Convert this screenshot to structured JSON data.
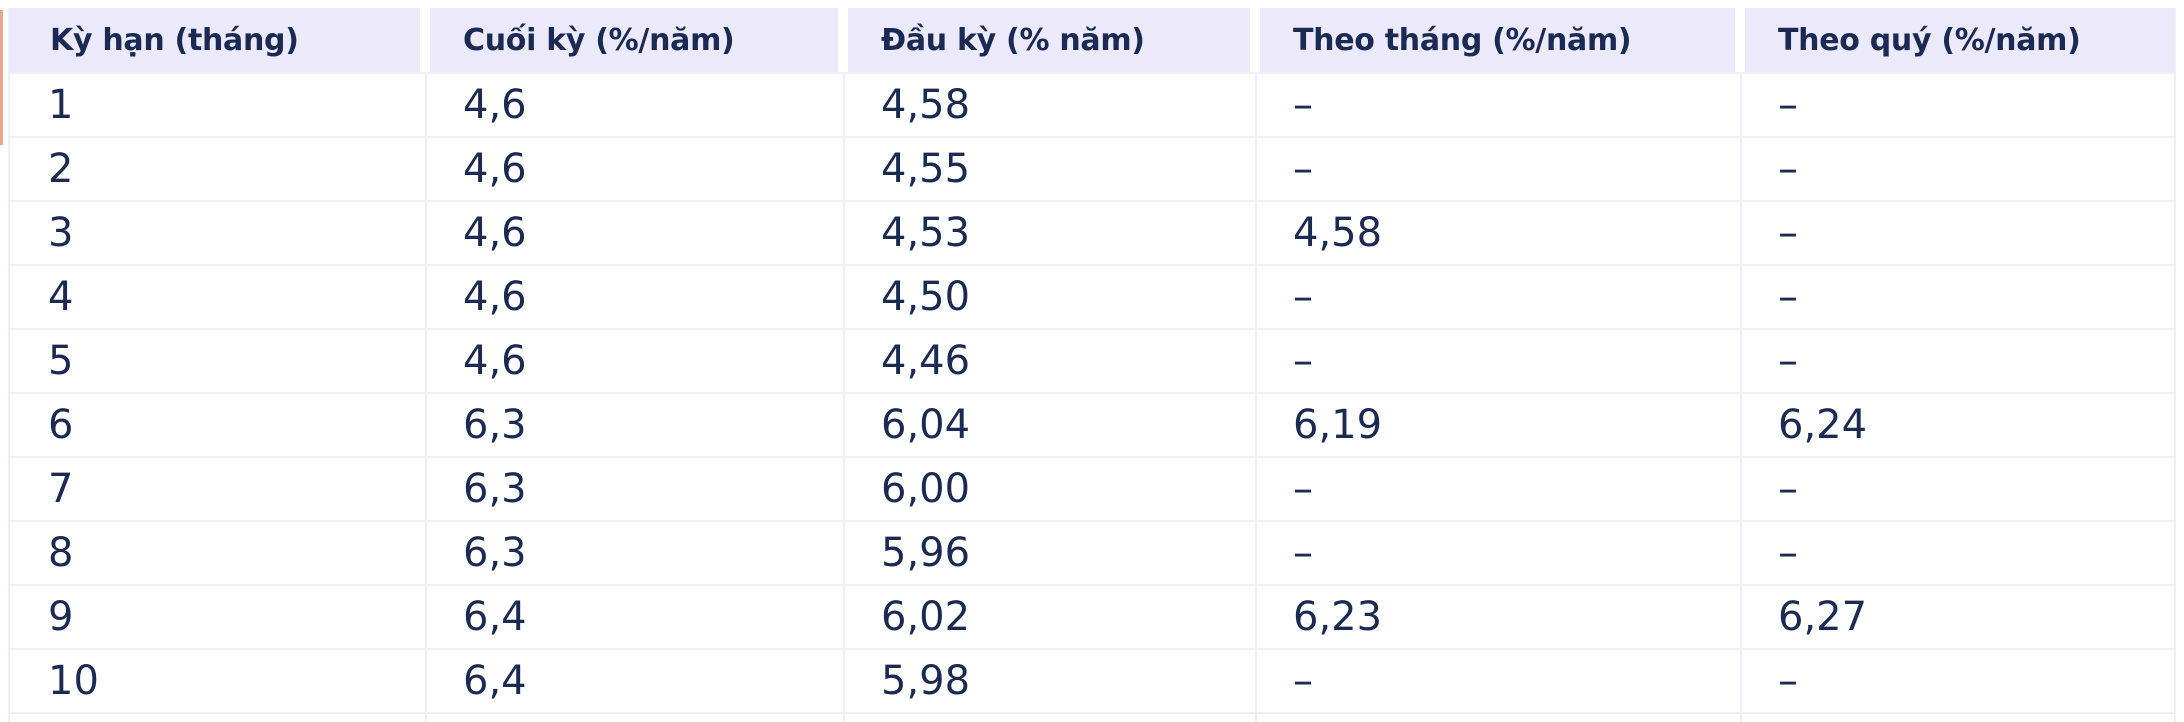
{
  "table": {
    "columns": [
      "Kỳ hạn (tháng)",
      "Cuối kỳ (%/năm)",
      "Đầu kỳ (% năm)",
      "Theo tháng (%/năm)",
      "Theo quý (%/năm)"
    ],
    "rows": [
      [
        "1",
        "4,6",
        "4,58",
        "–",
        "–"
      ],
      [
        "2",
        "4,6",
        "4,55",
        "–",
        "–"
      ],
      [
        "3",
        "4,6",
        "4,53",
        "4,58",
        "–"
      ],
      [
        "4",
        "4,6",
        "4,50",
        "–",
        "–"
      ],
      [
        "5",
        "4,6",
        "4,46",
        "–",
        "–"
      ],
      [
        "6",
        "6,3",
        "6,04",
        "6,19",
        "6,24"
      ],
      [
        "7",
        "6,3",
        "6,00",
        "–",
        "–"
      ],
      [
        "8",
        "6,3",
        "5,96",
        "–",
        "–"
      ],
      [
        "9",
        "6,4",
        "6,02",
        "6,23",
        "6,27"
      ],
      [
        "10",
        "6,4",
        "5,98",
        "–",
        "–"
      ]
    ],
    "empty_cell_marker": "–"
  },
  "colors": {
    "header_bg": "#EBE9FA",
    "text": "#1B2A52",
    "grid_line": "#F0EEF6",
    "edge_accent": "#EDA58F"
  }
}
